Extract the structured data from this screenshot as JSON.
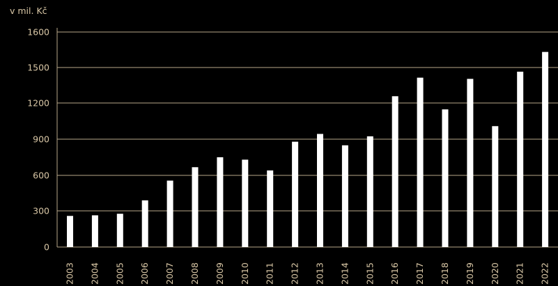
{
  "chart_data": {
    "type": "bar",
    "unit_label": "v mil. Kč",
    "categories": [
      "2003",
      "2004",
      "2005",
      "2006",
      "2007",
      "2008",
      "2009",
      "2010",
      "2011",
      "2012",
      "2013",
      "2014",
      "2015",
      "2016",
      "2017",
      "2018",
      "2019",
      "2020",
      "2021",
      "2022"
    ],
    "values": [
      260,
      265,
      278,
      390,
      555,
      667,
      750,
      730,
      640,
      880,
      945,
      850,
      925,
      1260,
      1415,
      1150,
      1405,
      1010,
      1465,
      1630
    ],
    "y_tick_labels": [
      "0",
      "300",
      "600",
      "900",
      "1200",
      "1500",
      "1600"
    ],
    "grid": true,
    "colors": {
      "background": "#000000",
      "bar": "#ffffff",
      "grid": "#b8a88a",
      "text": "#d9c7a6"
    }
  }
}
